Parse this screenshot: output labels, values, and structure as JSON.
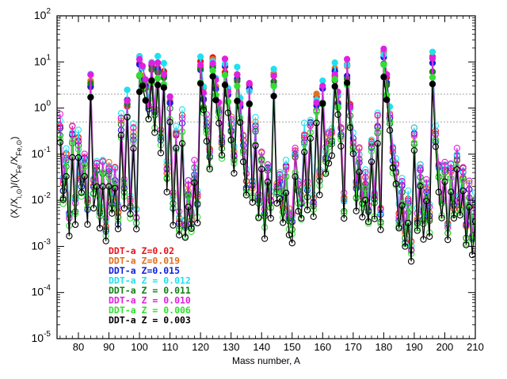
{
  "chart_data": {
    "type": "line",
    "xlabel": "Mass number, A",
    "ylabel": "(X_i/X_i,⊙)/(X_Fe/X_Fe,⊙)",
    "xlim": [
      73,
      210
    ],
    "ylim": [
      1e-05,
      100
    ],
    "yscale": "log",
    "x_ticks": [
      80,
      90,
      100,
      110,
      120,
      130,
      140,
      150,
      160,
      170,
      180,
      190,
      200,
      210
    ],
    "y_ticks": [
      {
        "value": 1e-05,
        "base": "10",
        "exp": "-5"
      },
      {
        "value": 0.0001,
        "base": "10",
        "exp": "-4"
      },
      {
        "value": 0.001,
        "base": "10",
        "exp": "-3"
      },
      {
        "value": 0.01,
        "base": "10",
        "exp": "-2"
      },
      {
        "value": 0.1,
        "base": "10",
        "exp": "-1"
      },
      {
        "value": 1,
        "base": "10",
        "exp": "0"
      },
      {
        "value": 10,
        "base": "10",
        "exp": "1"
      },
      {
        "value": 100,
        "base": "10",
        "exp": "2"
      }
    ],
    "reference_lines": [
      2,
      0.5
    ],
    "legend_position": "lower-left",
    "series": [
      {
        "name": "DDT-a Z=0.02",
        "color": "#e8141c",
        "scale": 1.0
      },
      {
        "name": "DDT-a Z=0.019",
        "color": "#e07020",
        "scale": 1.05
      },
      {
        "name": "DDT-a Z=0.015",
        "color": "#1020e0",
        "scale": 0.85
      },
      {
        "name": "DDT-a Z = 0.012",
        "color": "#20e0f0",
        "scale": 1.3
      },
      {
        "name": "DDT-a Z = 0.011",
        "color": "#108010",
        "scale": 0.7
      },
      {
        "name": "DDT-a Z = 0.010",
        "color": "#e020e0",
        "scale": 1.15
      },
      {
        "name": "DDT-a Z = 0.006",
        "color": "#30e030",
        "scale": 0.55
      },
      {
        "name": "DDT-a Z = 0.003",
        "color": "#000000",
        "scale": 0.4
      }
    ],
    "base_profile": {
      "x": [
        74,
        75,
        76,
        77,
        78,
        79,
        80,
        81,
        82,
        83,
        84,
        85,
        86,
        87,
        88,
        89,
        90,
        91,
        92,
        93,
        94,
        95,
        96,
        97,
        98,
        99,
        100,
        101,
        102,
        103,
        104,
        105,
        106,
        107,
        108,
        109,
        110,
        111,
        112,
        113,
        114,
        115,
        116,
        117,
        118,
        119,
        120,
        121,
        122,
        123,
        124,
        125,
        126,
        127,
        128,
        129,
        130,
        131,
        132,
        133,
        134,
        135,
        136,
        137,
        138,
        139,
        140,
        141,
        142,
        143,
        144,
        145,
        146,
        147,
        148,
        149,
        150,
        151,
        152,
        153,
        154,
        155,
        156,
        157,
        158,
        159,
        160,
        161,
        162,
        163,
        164,
        165,
        166,
        167,
        168,
        169,
        170,
        171,
        172,
        173,
        174,
        175,
        176,
        177,
        178,
        179,
        180,
        181,
        182,
        183,
        184,
        185,
        186,
        187,
        188,
        189,
        190,
        191,
        192,
        193,
        194,
        195,
        196,
        197,
        198,
        199,
        200,
        201,
        202,
        203,
        204,
        205,
        206,
        207,
        208,
        209,
        210
      ],
      "y": [
        0.5,
        0.02,
        0.1,
        0.005,
        0.3,
        0.01,
        0.2,
        0.03,
        0.08,
        0.01,
        4.0,
        0.02,
        0.05,
        0.008,
        0.06,
        0.003,
        0.05,
        0.01,
        0.04,
        0.005,
        0.5,
        0.02,
        1.5,
        0.01,
        0.3,
        0.005,
        8.0,
        6.0,
        3.0,
        1.2,
        9.0,
        0.8,
        8.0,
        0.3,
        6.0,
        0.05,
        1.2,
        0.01,
        0.3,
        0.004,
        0.6,
        0.003,
        0.02,
        0.005,
        0.05,
        0.01,
        9.0,
        2.0,
        0.5,
        0.1,
        10.0,
        3.0,
        1.0,
        0.2,
        8.0,
        2.0,
        0.5,
        0.1,
        5.0,
        1.0,
        0.2,
        0.03,
        2.5,
        0.02,
        0.4,
        0.01,
        0.1,
        0.005,
        0.05,
        0.01,
        5.0,
        0.02,
        0.03,
        0.01,
        0.05,
        0.005,
        0.004,
        0.1,
        0.02,
        0.01,
        0.3,
        0.02,
        0.5,
        0.01,
        1.5,
        0.03,
        2.5,
        0.1,
        0.2,
        0.3,
        6.0,
        1.5,
        0.3,
        0.01,
        8.0,
        1.0,
        0.2,
        0.02,
        0.1,
        0.01,
        0.03,
        0.008,
        0.2,
        0.01,
        0.5,
        0.005,
        15.0,
        4.0,
        0.8,
        0.1,
        0.05,
        0.005,
        0.02,
        0.002,
        0.01,
        0.001,
        0.3,
        0.005,
        0.05,
        0.005,
        0.02,
        0.005,
        10.0,
        0.3,
        0.05,
        0.01,
        0.05,
        0.003,
        0.05,
        0.008,
        0.1,
        0.01,
        0.04,
        0.003,
        0.02,
        0.002,
        0.01
      ]
    }
  }
}
